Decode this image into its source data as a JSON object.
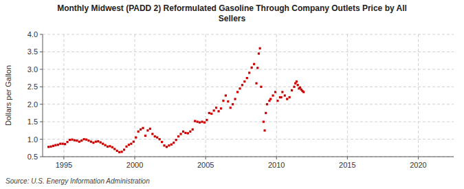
{
  "chart_data": {
    "type": "scatter",
    "title": "Monthly Midwest (PADD 2) Reformulated Gasoline Through Company Outlets Price by All\nSellers",
    "ylabel": "Dollars per Gallon",
    "annotations": [
      "Source: U.S. Energy Information Administration"
    ],
    "color": "#cc0000",
    "marker": "square",
    "grid": true,
    "xlim": [
      1993.5,
      2022.5
    ],
    "ylim": [
      0.5,
      4.0
    ],
    "xticks": [
      1995,
      2000,
      2005,
      2010,
      2015,
      2020
    ],
    "yticks": [
      0.5,
      {
        "value": 1.0,
        "label": "1.0"
      },
      1.5,
      {
        "value": 2.0,
        "label": "2.0"
      },
      2.5,
      {
        "value": 3.0,
        "label": "3.0"
      },
      3.5,
      {
        "value": 4.0,
        "label": "4.0"
      }
    ],
    "x": [
      1993.917,
      1994.083,
      1994.25,
      1994.417,
      1994.583,
      1994.75,
      1994.917,
      1995.083,
      1995.25,
      1995.417,
      1995.583,
      1995.75,
      1995.917,
      1996.083,
      1996.25,
      1996.417,
      1996.583,
      1996.75,
      1996.917,
      1997.083,
      1997.25,
      1997.417,
      1997.583,
      1997.75,
      1997.917,
      1998.083,
      1998.25,
      1998.417,
      1998.583,
      1998.75,
      1998.917,
      1999.083,
      1999.25,
      1999.417,
      1999.583,
      1999.75,
      1999.917,
      2000.083,
      2000.25,
      2000.417,
      2000.583,
      2000.75,
      2000.917,
      2001.083,
      2001.25,
      2001.417,
      2001.583,
      2001.75,
      2001.917,
      2002.083,
      2002.25,
      2002.417,
      2002.583,
      2002.75,
      2002.917,
      2003.083,
      2003.25,
      2003.417,
      2003.583,
      2003.75,
      2003.917,
      2004.083,
      2004.25,
      2004.417,
      2004.583,
      2004.75,
      2004.917,
      2005.083,
      2005.25,
      2005.417,
      2005.583,
      2005.75,
      2005.917,
      2006.083,
      2006.25,
      2006.417,
      2006.583,
      2006.75,
      2006.917,
      2007.083,
      2007.25,
      2007.417,
      2007.583,
      2007.75,
      2007.917,
      2008.083,
      2008.25,
      2008.417,
      2008.583,
      2008.667,
      2008.75,
      2008.833,
      2008.917,
      2009.083,
      2009.167,
      2009.25,
      2009.333,
      2009.5,
      2009.583,
      2009.75,
      2009.917,
      2010.083,
      2010.25,
      2010.333,
      2010.417,
      2010.583,
      2010.75,
      2010.917,
      2011.083,
      2011.25,
      2011.333,
      2011.417,
      2011.5,
      2011.583,
      2011.667,
      2011.75,
      2011.833,
      2011.917
    ],
    "values": [
      0.78,
      0.79,
      0.81,
      0.83,
      0.84,
      0.87,
      0.87,
      0.86,
      0.92,
      0.98,
      0.99,
      0.97,
      0.96,
      0.93,
      0.96,
      1.0,
      0.99,
      0.96,
      0.93,
      0.9,
      0.93,
      0.94,
      0.91,
      0.87,
      0.83,
      0.79,
      0.8,
      0.77,
      0.72,
      0.67,
      0.63,
      0.64,
      0.7,
      0.79,
      0.84,
      0.87,
      0.93,
      1.05,
      1.22,
      1.28,
      1.32,
      1.1,
      1.25,
      1.3,
      1.15,
      1.08,
      1.05,
      1.0,
      0.92,
      0.82,
      0.78,
      0.82,
      0.85,
      0.9,
      0.98,
      1.08,
      1.15,
      1.22,
      1.18,
      1.17,
      1.22,
      1.28,
      1.52,
      1.5,
      1.48,
      1.5,
      1.48,
      1.55,
      1.75,
      1.73,
      1.82,
      1.9,
      1.8,
      1.88,
      2.1,
      2.25,
      2.08,
      1.9,
      2.0,
      2.15,
      2.35,
      2.45,
      2.55,
      2.65,
      2.75,
      2.9,
      3.05,
      3.15,
      2.6,
      3.04,
      3.45,
      3.6,
      2.5,
      1.5,
      1.25,
      1.75,
      2.0,
      2.1,
      2.15,
      2.25,
      2.35,
      2.1,
      2.2,
      2.2,
      2.35,
      2.25,
      2.15,
      2.2,
      2.4,
      2.5,
      2.6,
      2.65,
      2.55,
      2.45,
      2.48,
      2.42,
      2.38,
      2.35
    ]
  }
}
